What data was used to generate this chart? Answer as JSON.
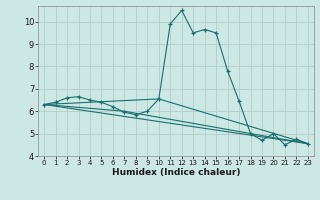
{
  "xlabel": "Humidex (Indice chaleur)",
  "ylabel": "",
  "background_color": "#cce8e4",
  "grid_color": "#b8d0cc",
  "line_color": "#1a6e6e",
  "marker_color": "#1a6e6e",
  "xlim": [
    -0.5,
    23.5
  ],
  "ylim": [
    4,
    10.7
  ],
  "yticks": [
    4,
    5,
    6,
    7,
    8,
    9,
    10
  ],
  "xticks": [
    0,
    1,
    2,
    3,
    4,
    5,
    6,
    7,
    8,
    9,
    10,
    11,
    12,
    13,
    14,
    15,
    16,
    17,
    18,
    19,
    20,
    21,
    22,
    23
  ],
  "main_series": {
    "x": [
      0,
      1,
      2,
      3,
      4,
      5,
      6,
      7,
      8,
      9,
      10,
      11,
      12,
      13,
      14,
      15,
      16,
      17,
      18,
      19,
      20,
      21,
      22,
      23
    ],
    "y": [
      6.3,
      6.4,
      6.6,
      6.65,
      6.5,
      6.4,
      6.2,
      5.95,
      5.85,
      6.0,
      6.55,
      9.9,
      10.5,
      9.5,
      9.65,
      9.5,
      7.8,
      6.45,
      5.0,
      4.7,
      5.0,
      4.5,
      4.75,
      4.55
    ]
  },
  "trend_lines": [
    {
      "x": [
        0,
        23
      ],
      "y": [
        6.3,
        4.55
      ]
    },
    {
      "x": [
        0,
        10,
        23
      ],
      "y": [
        6.3,
        6.55,
        4.55
      ]
    },
    {
      "x": [
        0,
        7,
        23
      ],
      "y": [
        6.3,
        6.0,
        4.55
      ]
    }
  ]
}
